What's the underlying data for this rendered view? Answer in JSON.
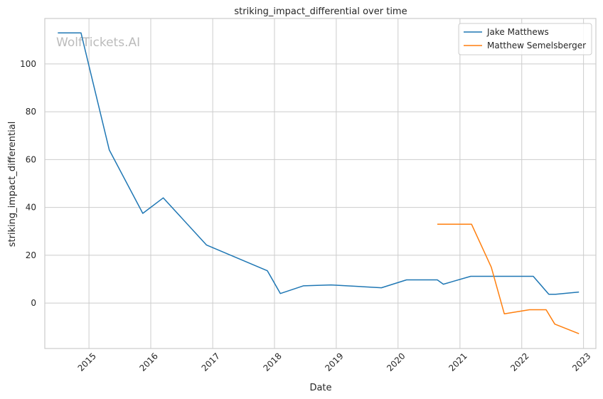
{
  "chart_data": {
    "type": "line",
    "title": "striking_impact_differential over time",
    "xlabel": "Date",
    "ylabel": "striking_impact_differential",
    "watermark": "WolfTickets.AI",
    "x_tick_labels": [
      "2015",
      "2016",
      "2017",
      "2018",
      "2019",
      "2020",
      "2021",
      "2022",
      "2023"
    ],
    "x_tick_values": [
      "2015-01-01",
      "2016-01-01",
      "2017-01-01",
      "2018-01-01",
      "2019-01-01",
      "2020-01-01",
      "2021-01-01",
      "2022-01-01",
      "2023-01-01"
    ],
    "y_ticks": [
      0,
      20,
      40,
      60,
      80,
      100
    ],
    "xlim": [
      "2014-04-15",
      "2023-03-15"
    ],
    "ylim": [
      -19,
      119
    ],
    "grid": true,
    "legend_position": "top-right",
    "series": [
      {
        "name": "Jake Matthews",
        "color": "#1f77b4",
        "points": [
          [
            "2014-07-01",
            113
          ],
          [
            "2014-11-15",
            113
          ],
          [
            "2015-05-01",
            64
          ],
          [
            "2015-11-15",
            37.5
          ],
          [
            "2016-03-15",
            44
          ],
          [
            "2016-11-25",
            24.3
          ],
          [
            "2017-11-20",
            13.5
          ],
          [
            "2018-02-05",
            4
          ],
          [
            "2018-06-20",
            7.2
          ],
          [
            "2018-12-01",
            7.6
          ],
          [
            "2019-09-25",
            6.4
          ],
          [
            "2020-02-20",
            9.7
          ],
          [
            "2020-08-20",
            9.7
          ],
          [
            "2020-09-25",
            7.9
          ],
          [
            "2021-03-05",
            11.2
          ],
          [
            "2022-03-10",
            11.2
          ],
          [
            "2022-06-10",
            3.7
          ],
          [
            "2022-07-20",
            3.7
          ],
          [
            "2022-12-05",
            4.6
          ]
        ]
      },
      {
        "name": "Matthew Semelsberger",
        "color": "#ff7f0e",
        "points": [
          [
            "2020-08-20",
            33
          ],
          [
            "2021-03-10",
            33
          ],
          [
            "2021-07-05",
            15
          ],
          [
            "2021-09-20",
            -4.5
          ],
          [
            "2022-02-15",
            -2.8
          ],
          [
            "2022-05-25",
            -2.8
          ],
          [
            "2022-07-15",
            -8.8
          ],
          [
            "2022-12-05",
            -12.8
          ]
        ]
      }
    ]
  }
}
